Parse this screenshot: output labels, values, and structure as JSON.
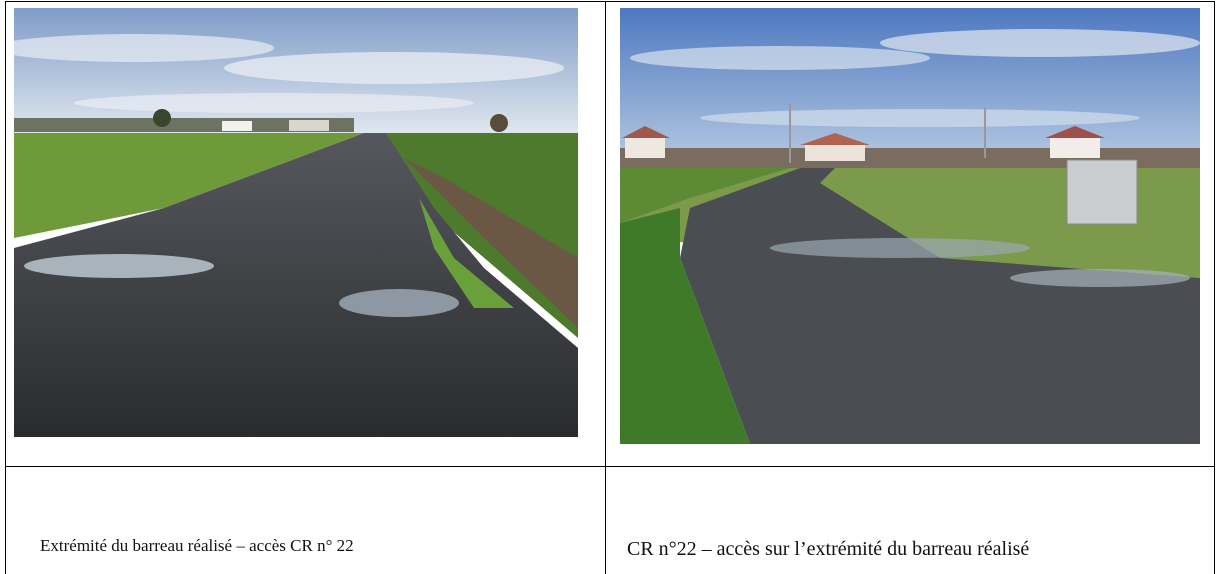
{
  "table": {
    "rows": [
      [
        {
          "caption": "Extrémité du barreau réalisé – accès CR n° 22"
        },
        {
          "caption": "CR n°22 – accès sur l’extrémité du barreau réalisé"
        }
      ]
    ]
  }
}
